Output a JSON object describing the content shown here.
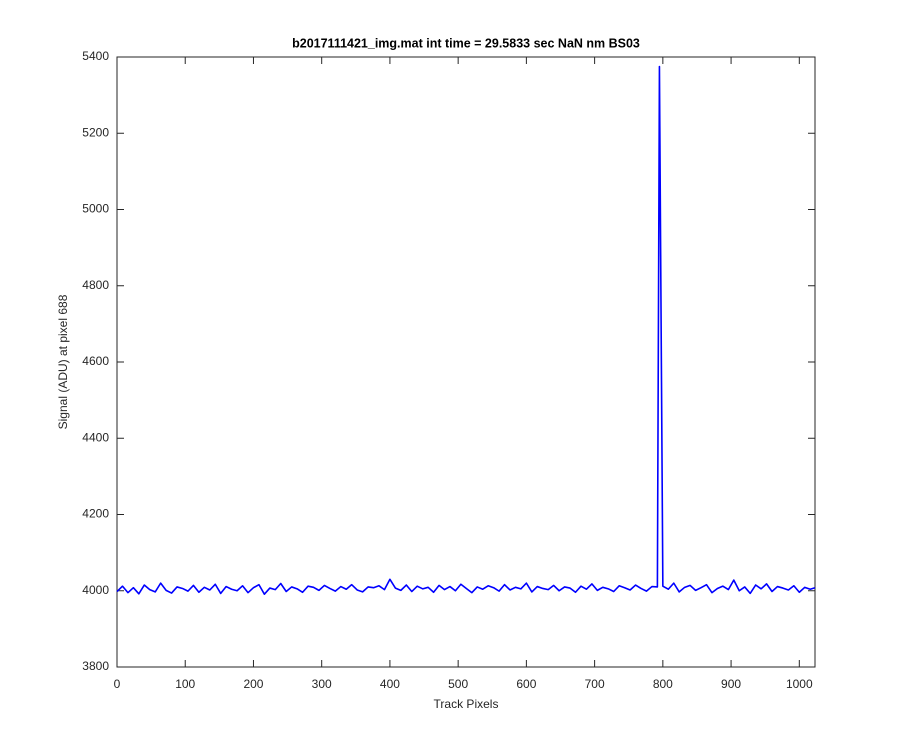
{
  "chart_data": {
    "type": "line",
    "title": "b2017111421_img.mat int time = 29.5833 sec  NaN nm BS03",
    "xlabel": "Track Pixels",
    "ylabel": "Signal (ADU) at pixel 688",
    "x": [
      0,
      8,
      16,
      24,
      32,
      40,
      48,
      56,
      64,
      72,
      80,
      88,
      96,
      104,
      112,
      120,
      128,
      136,
      144,
      152,
      160,
      168,
      176,
      184,
      192,
      200,
      208,
      216,
      224,
      232,
      240,
      248,
      256,
      264,
      272,
      280,
      288,
      296,
      304,
      312,
      320,
      328,
      336,
      344,
      352,
      360,
      368,
      376,
      384,
      392,
      400,
      408,
      416,
      424,
      432,
      440,
      448,
      456,
      464,
      472,
      480,
      488,
      496,
      504,
      512,
      520,
      528,
      536,
      544,
      552,
      560,
      568,
      576,
      584,
      592,
      600,
      608,
      616,
      624,
      632,
      640,
      648,
      656,
      664,
      672,
      680,
      688,
      696,
      704,
      712,
      720,
      728,
      736,
      744,
      752,
      760,
      768,
      776,
      784,
      792,
      795,
      800,
      808,
      816,
      824,
      832,
      840,
      848,
      856,
      864,
      872,
      880,
      888,
      896,
      904,
      912,
      920,
      928,
      936,
      944,
      952,
      960,
      968,
      976,
      984,
      992,
      1000,
      1008,
      1016,
      1023
    ],
    "series": [
      {
        "color": "#0000ff",
        "values": [
          3998,
          4012,
          3995,
          4008,
          3992,
          4015,
          4003,
          3997,
          4020,
          4001,
          3994,
          4010,
          4006,
          3999,
          4014,
          3996,
          4009,
          4002,
          4017,
          3993,
          4011,
          4004,
          4000,
          4013,
          3995,
          4008,
          4016,
          3991,
          4007,
          4003,
          4019,
          3998,
          4010,
          4005,
          3996,
          4012,
          4009,
          4001,
          4014,
          4006,
          3999,
          4011,
          4004,
          4016,
          4002,
          3997,
          4010,
          4008,
          4013,
          4003,
          4030,
          4007,
          4001,
          4015,
          3998,
          4012,
          4005,
          4009,
          3996,
          4014,
          4003,
          4011,
          4000,
          4017,
          4006,
          3995,
          4010,
          4004,
          4013,
          4008,
          3999,
          4016,
          4002,
          4009,
          4005,
          4020,
          3997,
          4011,
          4006,
          4003,
          4014,
          4000,
          4010,
          4007,
          3996,
          4012,
          4004,
          4018,
          4001,
          4009,
          4005,
          3998,
          4013,
          4008,
          4002,
          4015,
          4006,
          3999,
          4011,
          4010,
          5375,
          4012,
          4004,
          4020,
          3997,
          4009,
          4014,
          4001,
          4008,
          4016,
          3995,
          4006,
          4012,
          4003,
          4028,
          4000,
          4010,
          3993,
          4015,
          4005,
          4018,
          3998,
          4011,
          4007,
          4002,
          4013,
          3996,
          4009,
          4004,
          4008
        ]
      }
    ],
    "xlim": [
      0,
      1023
    ],
    "xticks": [
      0,
      100,
      200,
      300,
      400,
      500,
      600,
      700,
      800,
      900,
      1000
    ],
    "ylim": [
      3800,
      5400
    ],
    "yticks": [
      3800,
      4000,
      4200,
      4400,
      4600,
      4800,
      5000,
      5200,
      5400
    ]
  }
}
